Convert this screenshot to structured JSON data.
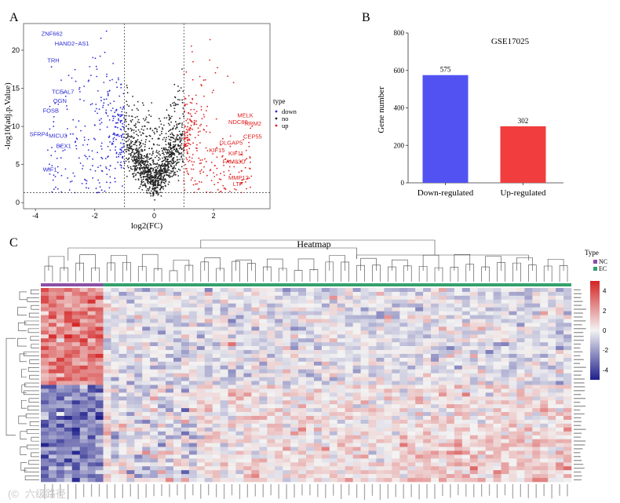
{
  "panels": {
    "a": {
      "letter": "A"
    },
    "b": {
      "letter": "B"
    },
    "c": {
      "letter": "C"
    }
  },
  "volcano_chart": {
    "type": "scatter",
    "xlabel": "log2(FC)",
    "ylabel": "-log10(adj.p.Value)",
    "xlim": [
      -4.4,
      3.9
    ],
    "ylim": [
      -0.8,
      23.5
    ],
    "x_ticks": [
      "-4",
      "-2",
      "0",
      "2"
    ],
    "y_ticks": [
      "0",
      "5",
      "10",
      "15",
      "20"
    ],
    "fc_thresholds": [
      -1,
      1
    ],
    "p_threshold": 1.3,
    "legend": {
      "title": "type",
      "entries": [
        "down",
        "no",
        "up"
      ],
      "placement": "right"
    },
    "colors": {
      "down": "#2b2bd6",
      "no": "#222222",
      "up": "#e02020"
    },
    "down_labels": [
      {
        "text": "ZNF662",
        "x": -3.8,
        "y": 21.9
      },
      {
        "text": "HAND2−AS1",
        "x": -3.35,
        "y": 20.6
      },
      {
        "text": "TRH",
        "x": -3.6,
        "y": 18.4
      },
      {
        "text": "TCEAL7",
        "x": -3.45,
        "y": 14.3
      },
      {
        "text": "OGN",
        "x": -3.4,
        "y": 13.1
      },
      {
        "text": "FOSB",
        "x": -3.75,
        "y": 11.8
      },
      {
        "text": "SFRP4",
        "x": -4.2,
        "y": 8.7
      },
      {
        "text": "MICU3",
        "x": -3.55,
        "y": 8.5
      },
      {
        "text": "BEX1",
        "x": -3.3,
        "y": 7.2
      },
      {
        "text": "WIF1",
        "x": -3.75,
        "y": 4.1
      }
    ],
    "up_labels": [
      {
        "text": "MELK",
        "x": 2.8,
        "y": 11.2
      },
      {
        "text": "NDC80",
        "x": 2.5,
        "y": 10.3
      },
      {
        "text": "RRM2",
        "x": 3.05,
        "y": 10.1
      },
      {
        "text": "CEP55",
        "x": 3.0,
        "y": 8.4
      },
      {
        "text": "DLGAP5",
        "x": 2.2,
        "y": 7.6
      },
      {
        "text": "KIF15",
        "x": 1.85,
        "y": 6.6
      },
      {
        "text": "KIF11",
        "x": 2.5,
        "y": 6.2
      },
      {
        "text": "FAM83D",
        "x": 2.3,
        "y": 5.1
      },
      {
        "text": "MMP12",
        "x": 2.5,
        "y": 3.0
      },
      {
        "text": "LTF",
        "x": 2.65,
        "y": 2.2
      }
    ]
  },
  "bar_chart": {
    "type": "bar",
    "title": "GSE17025",
    "ylabel": "Gene number",
    "categories": [
      "Down-regulated",
      "Up-regulated"
    ],
    "values": [
      575,
      302
    ],
    "value_labels": [
      "575",
      "302"
    ],
    "ylim": [
      0,
      800
    ],
    "y_ticks": [
      "0",
      "200",
      "400",
      "600",
      "800"
    ],
    "colors": [
      "#5252f2",
      "#f13d3d"
    ]
  },
  "heatmap": {
    "type": "heatmap",
    "title": "Heatmap",
    "legend_title": "Type",
    "groups": [
      {
        "name": "NC",
        "color": "#8b4ea6",
        "count": 8
      },
      {
        "name": "EC",
        "color": "#33a06b",
        "count": 60
      }
    ],
    "color_scale": {
      "low": "#1f1f8c",
      "mid": "#f3f3f3",
      "high": "#d42424",
      "min": -5,
      "max": 5
    },
    "scale_ticks": [
      "4",
      "2",
      "0",
      "-2",
      "-4"
    ],
    "rows_up": 25,
    "rows_down": 25
  },
  "watermark": {
    "text": "六级路径"
  }
}
